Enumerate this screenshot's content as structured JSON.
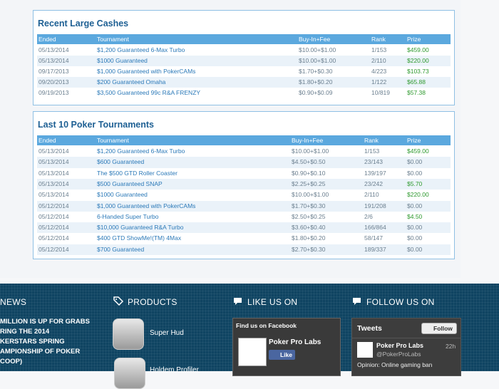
{
  "recent_cashes": {
    "title": "Recent Large Cashes",
    "columns": [
      "Ended",
      "Tournament",
      "Buy-In+Fee",
      "Rank",
      "Prize"
    ],
    "rows": [
      [
        "05/13/2014",
        "$1,200 Guaranteed 6-Max Turbo",
        "$10.00+$1.00",
        "1/153",
        "$459.00"
      ],
      [
        "05/13/2014",
        "$1000 Guaranteed",
        "$10.00+$1.00",
        "2/110",
        "$220.00"
      ],
      [
        "09/17/2013",
        "$1,000 Guaranteed with PokerCAMs",
        "$1.70+$0.30",
        "4/223",
        "$103.73"
      ],
      [
        "09/20/2013",
        "$200 Guaranteed Omaha",
        "$1.80+$0.20",
        "1/122",
        "$65.88"
      ],
      [
        "09/19/2013",
        "$3,500 Guaranteed 99c R&A FRENZY",
        "$0.90+$0.09",
        "10/819",
        "$57.38"
      ]
    ]
  },
  "last_tournaments": {
    "title": "Last 10 Poker Tournaments",
    "columns": [
      "Ended",
      "Tournament",
      "Buy-In+Fee",
      "Rank",
      "Prize"
    ],
    "rows": [
      [
        "05/13/2014",
        "$1,200 Guaranteed 6-Max Turbo",
        "$10.00+$1.00",
        "1/153",
        "$459.00"
      ],
      [
        "05/13/2014",
        "$600 Guaranteed",
        "$4.50+$0.50",
        "23/143",
        "$0.00"
      ],
      [
        "05/13/2014",
        "The $500 GTD Roller Coaster",
        "$0.90+$0.10",
        "139/197",
        "$0.00"
      ],
      [
        "05/13/2014",
        "$500 Guaranteed SNAP",
        "$2.25+$0.25",
        "23/242",
        "$5.70"
      ],
      [
        "05/13/2014",
        "$1000 Guaranteed",
        "$10.00+$1.00",
        "2/110",
        "$220.00"
      ],
      [
        "05/12/2014",
        "$1,000 Guaranteed with PokerCAMs",
        "$1.70+$0.30",
        "191/208",
        "$0.00"
      ],
      [
        "05/12/2014",
        "6-Handed Super Turbo",
        "$2.50+$0.25",
        "2/6",
        "$4.50"
      ],
      [
        "05/12/2014",
        "$10,000 Guaranteed R&A Turbo",
        "$3.60+$0.40",
        "166/864",
        "$0.00"
      ],
      [
        "05/12/2014",
        "$400 GTD ShowMe!(TM) 4Max",
        "$1.80+$0.20",
        "58/147",
        "$0.00"
      ],
      [
        "05/12/2014",
        "$700 Guaranteed",
        "$2.70+$0.30",
        "189/337",
        "$0.00"
      ]
    ]
  },
  "footer": {
    "news": {
      "heading": "NEWS",
      "lines": [
        "MILLION IS UP FOR GRABS",
        "RING THE 2014",
        "KERSTARS SPRING",
        "AMPIONSHIP OF POKER",
        "COOP)"
      ]
    },
    "products": {
      "heading": "PRODUCTS",
      "items": [
        "Super Hud",
        "Holdem Profiler"
      ]
    },
    "facebook": {
      "heading": "LIKE US ON",
      "box_title": "Find us on Facebook",
      "page_name": "Poker Pro Labs",
      "like": "Like"
    },
    "twitter": {
      "heading": "FOLLOW US ON",
      "tweets": "Tweets",
      "follow": "Follow",
      "name": "Poker Pro Labs",
      "time": "22h",
      "handle": "@PokerProLabs",
      "text": "Opinion: Online gaming ban"
    }
  }
}
